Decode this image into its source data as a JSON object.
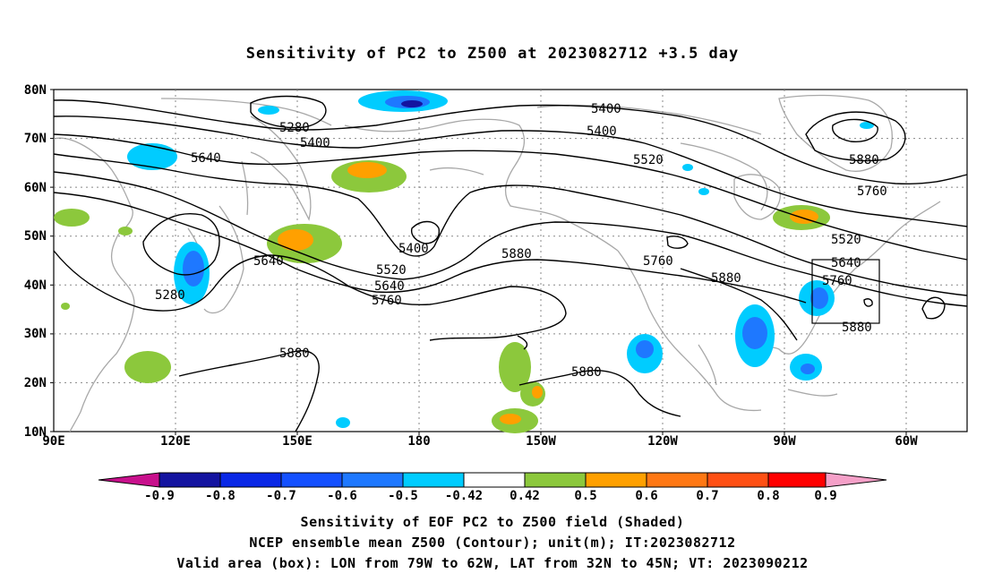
{
  "title": "Sensitivity of PC2 to Z500 at 2023082712 +3.5 day",
  "axes": {
    "lat_labels": [
      "80N",
      "70N",
      "60N",
      "50N",
      "40N",
      "30N",
      "20N",
      "10N"
    ],
    "lon_labels": [
      "90E",
      "120E",
      "150E",
      "180",
      "150W",
      "120W",
      "90W",
      "60W"
    ]
  },
  "contour_labels": [
    "5280",
    "5400",
    "5640",
    "5400",
    "5520",
    "5640",
    "5280",
    "5400",
    "5400",
    "5520",
    "5640",
    "5760",
    "5880",
    "5880",
    "5760",
    "5880",
    "5880",
    "5880",
    "5520",
    "5640",
    "5760",
    "5880",
    "5760",
    "5880"
  ],
  "colorbar": {
    "labels": [
      "-0.9",
      "-0.8",
      "-0.7",
      "-0.6",
      "-0.5",
      "-0.42",
      "0.42",
      "0.5",
      "0.6",
      "0.7",
      "0.8",
      "0.9"
    ],
    "colors": [
      "#c8108c",
      "#1414a0",
      "#0a28e6",
      "#1450ff",
      "#1e78ff",
      "#00aaff",
      "#00ccff",
      "#ffffff",
      "#8cc83c",
      "#ffa000",
      "#ff7814",
      "#ff5014",
      "#ff1e1e",
      "#ff0000",
      "#f5a0c8"
    ]
  },
  "footer": {
    "line1": "Sensitivity of EOF PC2 to Z500 field (Shaded)",
    "line2": "NCEP ensemble mean Z500 (Contour); unit(m); IT:2023082712",
    "line3": "Valid area (box): LON from 79W to 62W, LAT from 32N to 45N; VT: 2023090212"
  }
}
